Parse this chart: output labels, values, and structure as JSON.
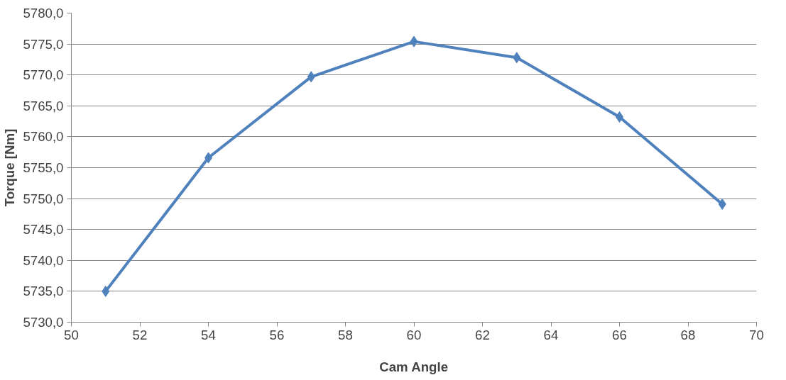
{
  "chart_data": {
    "type": "line",
    "xlabel": "Cam Angle",
    "ylabel": "Torque [Nm]",
    "x": [
      51,
      54,
      57,
      60,
      63,
      66,
      69
    ],
    "series": [
      {
        "color": "#4f81bd",
        "values": [
          5735.0,
          5756.6,
          5769.7,
          5775.4,
          5772.8,
          5763.2,
          5749.1
        ]
      }
    ],
    "xlim": [
      50,
      70
    ],
    "xticks": [
      50,
      52,
      54,
      56,
      58,
      60,
      62,
      64,
      66,
      68,
      70
    ],
    "ylim": [
      5730,
      5780
    ],
    "yticks": [
      {
        "value": 5730,
        "label": "5730,0"
      },
      {
        "value": 5735,
        "label": "5735,0"
      },
      {
        "value": 5740,
        "label": "5740,0"
      },
      {
        "value": 5745,
        "label": "5745,0"
      },
      {
        "value": 5750,
        "label": "5750,0"
      },
      {
        "value": 5755,
        "label": "5755,0"
      },
      {
        "value": 5760,
        "label": "5760,0"
      },
      {
        "value": 5765,
        "label": "5765,0"
      },
      {
        "value": 5770,
        "label": "5770,0"
      },
      {
        "value": 5775,
        "label": "5775,0"
      },
      {
        "value": 5780,
        "label": "5780,0"
      }
    ],
    "grid": "y",
    "marker": "diamond",
    "line_style": "solid"
  }
}
